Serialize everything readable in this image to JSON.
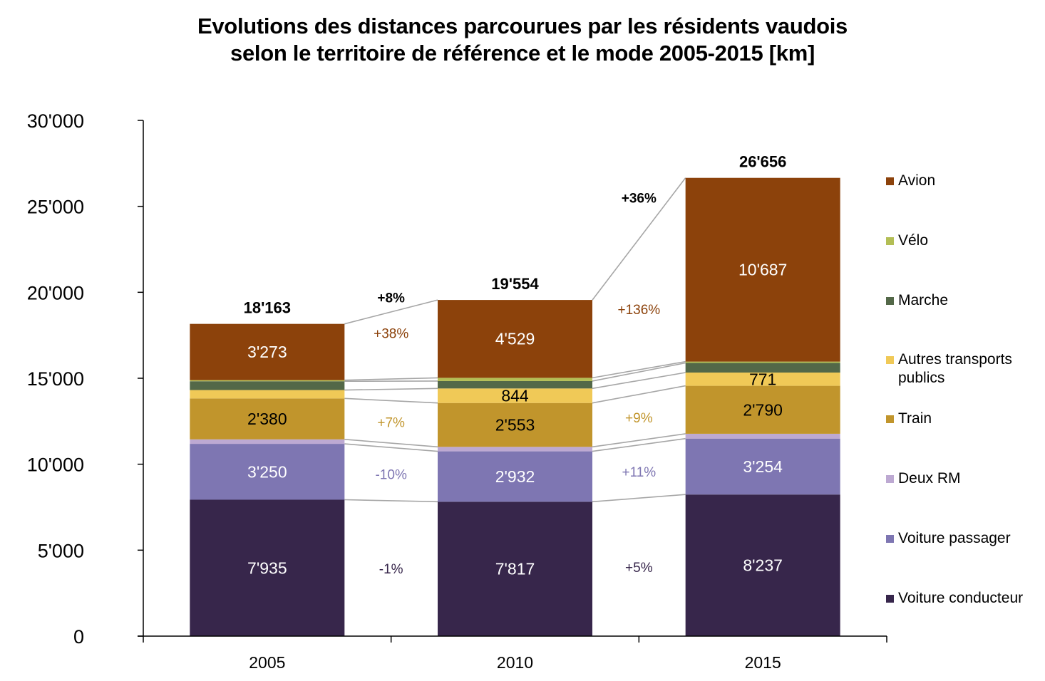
{
  "chart_data": {
    "type": "bar",
    "stacked": true,
    "title": "Evolutions des distances parcourues par les résidents vaudois selon le territoire de référence et le mode 2005-2015 [km]",
    "title_lines": [
      "Evolutions des distances parcourues par les résidents vaudois",
      "selon le territoire de référence et le mode 2005-2015 [km]"
    ],
    "xlabel": "",
    "ylabel": "",
    "categories": [
      "2005",
      "2010",
      "2015"
    ],
    "ylim": [
      0,
      30000
    ],
    "yticks": [
      0,
      5000,
      10000,
      15000,
      20000,
      25000,
      30000
    ],
    "ytick_labels": [
      "0",
      "5'000",
      "10'000",
      "15'000",
      "20'000",
      "25'000",
      "30'000"
    ],
    "grid": false,
    "legend_position": "right",
    "series": [
      {
        "name": "Voiture conducteur",
        "color": "#37264B",
        "label_color": "#ffffff",
        "values": [
          7935,
          7817,
          8237
        ],
        "labels": [
          "7'935",
          "7'817",
          "8'237"
        ]
      },
      {
        "name": "Voiture passager",
        "color": "#7E76B2",
        "label_color": "#ffffff",
        "values": [
          3250,
          2932,
          3254
        ],
        "labels": [
          "3'250",
          "2'932",
          "3'254"
        ]
      },
      {
        "name": "Deux RM",
        "color": "#BDA9D2",
        "label_color": "#000000",
        "values": [
          260,
          260,
          280
        ],
        "labels": [
          null,
          null,
          null
        ]
      },
      {
        "name": "Train",
        "color": "#C1952C",
        "label_color": "#000000",
        "values": [
          2380,
          2553,
          2790
        ],
        "labels": [
          "2'380",
          "2'553",
          "2'790"
        ]
      },
      {
        "name": "Autres transports publics",
        "color": "#F0C957",
        "label_color": "#000000",
        "values": [
          490,
          844,
          771
        ],
        "labels": [
          null,
          "844",
          "771"
        ]
      },
      {
        "name": "Marche",
        "color": "#536848",
        "label_color": "#ffffff",
        "values": [
          510,
          430,
          560
        ],
        "labels": [
          null,
          null,
          null
        ]
      },
      {
        "name": "Vélo",
        "color": "#B3BE55",
        "label_color": "#000000",
        "values": [
          65,
          189,
          77
        ],
        "labels": [
          null,
          null,
          null
        ]
      },
      {
        "name": "Avion",
        "color": "#8C420B",
        "label_color": "#ffffff",
        "values": [
          3273,
          4529,
          10687
        ],
        "labels": [
          "3'273",
          "4'529",
          "10'687"
        ]
      }
    ],
    "totals": [
      18163,
      19554,
      26656
    ],
    "total_labels": [
      "18'163",
      "19'554",
      "26'656"
    ],
    "legend_entries": [
      {
        "name": "Avion",
        "color": "#8C420B"
      },
      {
        "name": "Vélo",
        "color": "#B3BE55"
      },
      {
        "name": "Marche",
        "color": "#536848"
      },
      {
        "name": "Autres transports publics",
        "color": "#F0C957"
      },
      {
        "name": "Train",
        "color": "#C1952C"
      },
      {
        "name": "Deux RM",
        "color": "#BDA9D2"
      },
      {
        "name": "Voiture passager",
        "color": "#7E76B2"
      },
      {
        "name": "Voiture conducteur",
        "color": "#37264B"
      }
    ],
    "annotations": [
      {
        "between": [
          "2005",
          "2010"
        ],
        "series": "Total",
        "text": "+8%",
        "color": "#000000",
        "bold": true
      },
      {
        "between": [
          "2005",
          "2010"
        ],
        "series": "Avion",
        "text": "+38%",
        "color": "#8C420B",
        "bold": false
      },
      {
        "between": [
          "2005",
          "2010"
        ],
        "series": "Train",
        "text": "+7%",
        "color": "#C1952C",
        "bold": false
      },
      {
        "between": [
          "2005",
          "2010"
        ],
        "series": "Voiture passager",
        "text": "-10%",
        "color": "#7E76B2",
        "bold": false
      },
      {
        "between": [
          "2005",
          "2010"
        ],
        "series": "Voiture conducteur",
        "text": "-1%",
        "color": "#37264B",
        "bold": false
      },
      {
        "between": [
          "2010",
          "2015"
        ],
        "series": "Total",
        "text": "+36%",
        "color": "#000000",
        "bold": true
      },
      {
        "between": [
          "2010",
          "2015"
        ],
        "series": "Avion",
        "text": "+136%",
        "color": "#8C420B",
        "bold": false
      },
      {
        "between": [
          "2010",
          "2015"
        ],
        "series": "Train",
        "text": "+9%",
        "color": "#C1952C",
        "bold": false
      },
      {
        "between": [
          "2010",
          "2015"
        ],
        "series": "Voiture passager",
        "text": "+11%",
        "color": "#7E76B2",
        "bold": false
      },
      {
        "between": [
          "2010",
          "2015"
        ],
        "series": "Voiture conducteur",
        "text": "+5%",
        "color": "#37264B",
        "bold": false
      }
    ]
  }
}
